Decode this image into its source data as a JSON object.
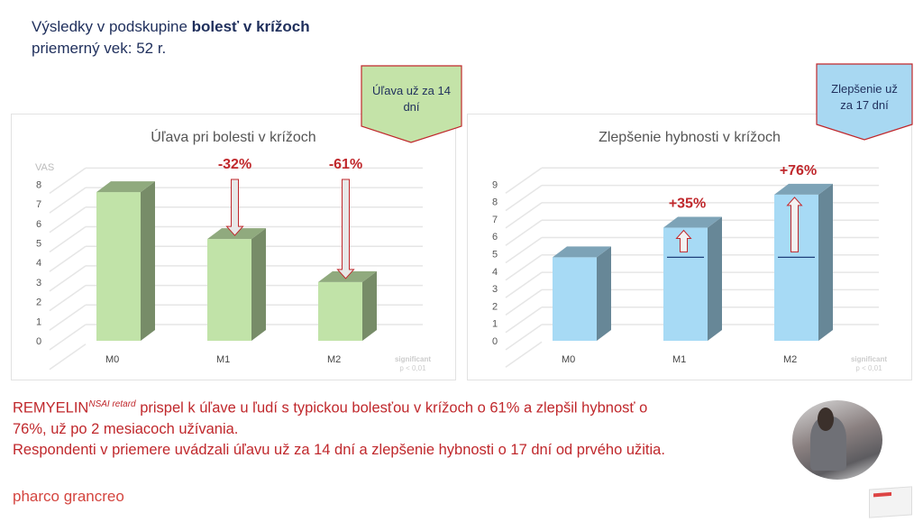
{
  "header": {
    "title_prefix": "Výsledky v podskupine ",
    "title_bold": "bolesť v krížoch",
    "subtitle": "priemerný vek: 52 r."
  },
  "callouts": [
    {
      "text": "Úľava už za 14 dní",
      "color": "#c4e3a8",
      "border": "#c0282c"
    },
    {
      "text": "Zlepšenie už za 17 dní",
      "color": "#a8d8f2",
      "border": "#c0282c"
    }
  ],
  "chart_data": [
    {
      "type": "bar",
      "title": "Úľava pri bolesti v krížoch",
      "ylabel": "VAS",
      "categories": [
        "M0",
        "M1",
        "M2"
      ],
      "values": [
        7.6,
        5.2,
        3.0
      ],
      "yticks": [
        "0",
        "1",
        "2",
        "3",
        "4",
        "5",
        "6",
        "7",
        "8"
      ],
      "ylim": [
        0,
        9
      ],
      "grid": true,
      "color": "#c1e3a8",
      "annotations": [
        "",
        "-32%",
        "-61%"
      ],
      "arrow_direction": "down",
      "note_line1": "significant",
      "note_line2": "p < 0,01"
    },
    {
      "type": "bar",
      "title": "Zlepšenie hybnosti v krížoch",
      "ylabel": "",
      "categories": [
        "M0",
        "M1",
        "M2"
      ],
      "values": [
        4.8,
        6.5,
        8.4
      ],
      "yticks": [
        "0",
        "1",
        "2",
        "3",
        "4",
        "5",
        "6",
        "7",
        "8",
        "9"
      ],
      "ylim": [
        0,
        10
      ],
      "grid": true,
      "color": "#a7daf5",
      "annotations": [
        "",
        "+35%",
        "+76%"
      ],
      "arrow_direction": "up",
      "note_line1": "significant",
      "note_line2": "p < 0,01"
    }
  ],
  "body": {
    "brand": "REMYELIN",
    "brand_sup": "NSAI retard",
    "line1_rest": " prispel k úľave u ľudí s typickou bolesťou v krížoch o 61% a zlepšil hybnosť o",
    "line2": "76%, už po 2 mesiacoch užívania.",
    "line3": "Respondenti v priemere uvádzali úľavu už za 14 dní a zlepšenie hybnosti o 17 dní od prvého užitia."
  },
  "logo": {
    "text": "pharco  grancreo"
  }
}
